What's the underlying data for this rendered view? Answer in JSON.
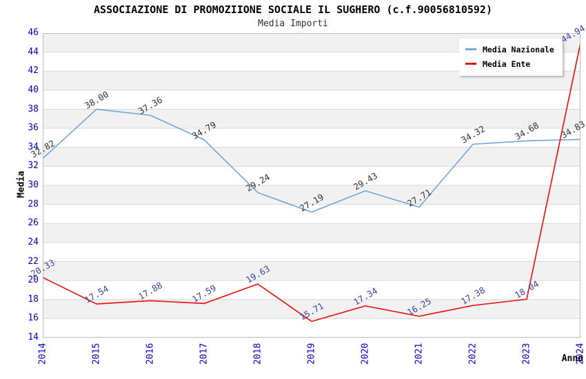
{
  "header": {
    "title": "ASSOCIAZIONE DI PROMOZIIONE SOCIALE IL SUGHERO (c.f.90056810592)",
    "subtitle": "Media Importi"
  },
  "chart_data": {
    "type": "line",
    "title": "ASSOCIAZIONE DI PROMOZIIONE SOCIALE IL SUGHERO (c.f.90056810592)",
    "subtitle": "Media Importi",
    "xlabel": "Anno",
    "ylabel": "Media",
    "ylim": [
      14,
      46
    ],
    "ytick_step": 2,
    "grid": "horizontal-bands",
    "legend_position": "top-right",
    "categories": [
      "2014",
      "2015",
      "2016",
      "2017",
      "2018",
      "2019",
      "2020",
      "2021",
      "2022",
      "2023",
      "2024"
    ],
    "series": [
      {
        "name": "Media Nazionale",
        "color": "#76a9dd",
        "label_color": "#333333",
        "values": [
          32.82,
          38.0,
          37.36,
          34.79,
          29.24,
          27.19,
          29.43,
          27.71,
          34.32,
          34.68,
          34.83
        ]
      },
      {
        "name": "Media Ente",
        "color": "#e81717",
        "label_color": "#39469e",
        "values": [
          20.33,
          17.54,
          17.88,
          17.59,
          19.63,
          15.71,
          17.34,
          16.25,
          17.38,
          18.04,
          44.94
        ]
      }
    ],
    "band_color": "#f1f1f1",
    "gridline_color": "#d9d9d9",
    "plot_border_color": "#bcbcbc",
    "axis_tick_color": "#0000cc"
  }
}
